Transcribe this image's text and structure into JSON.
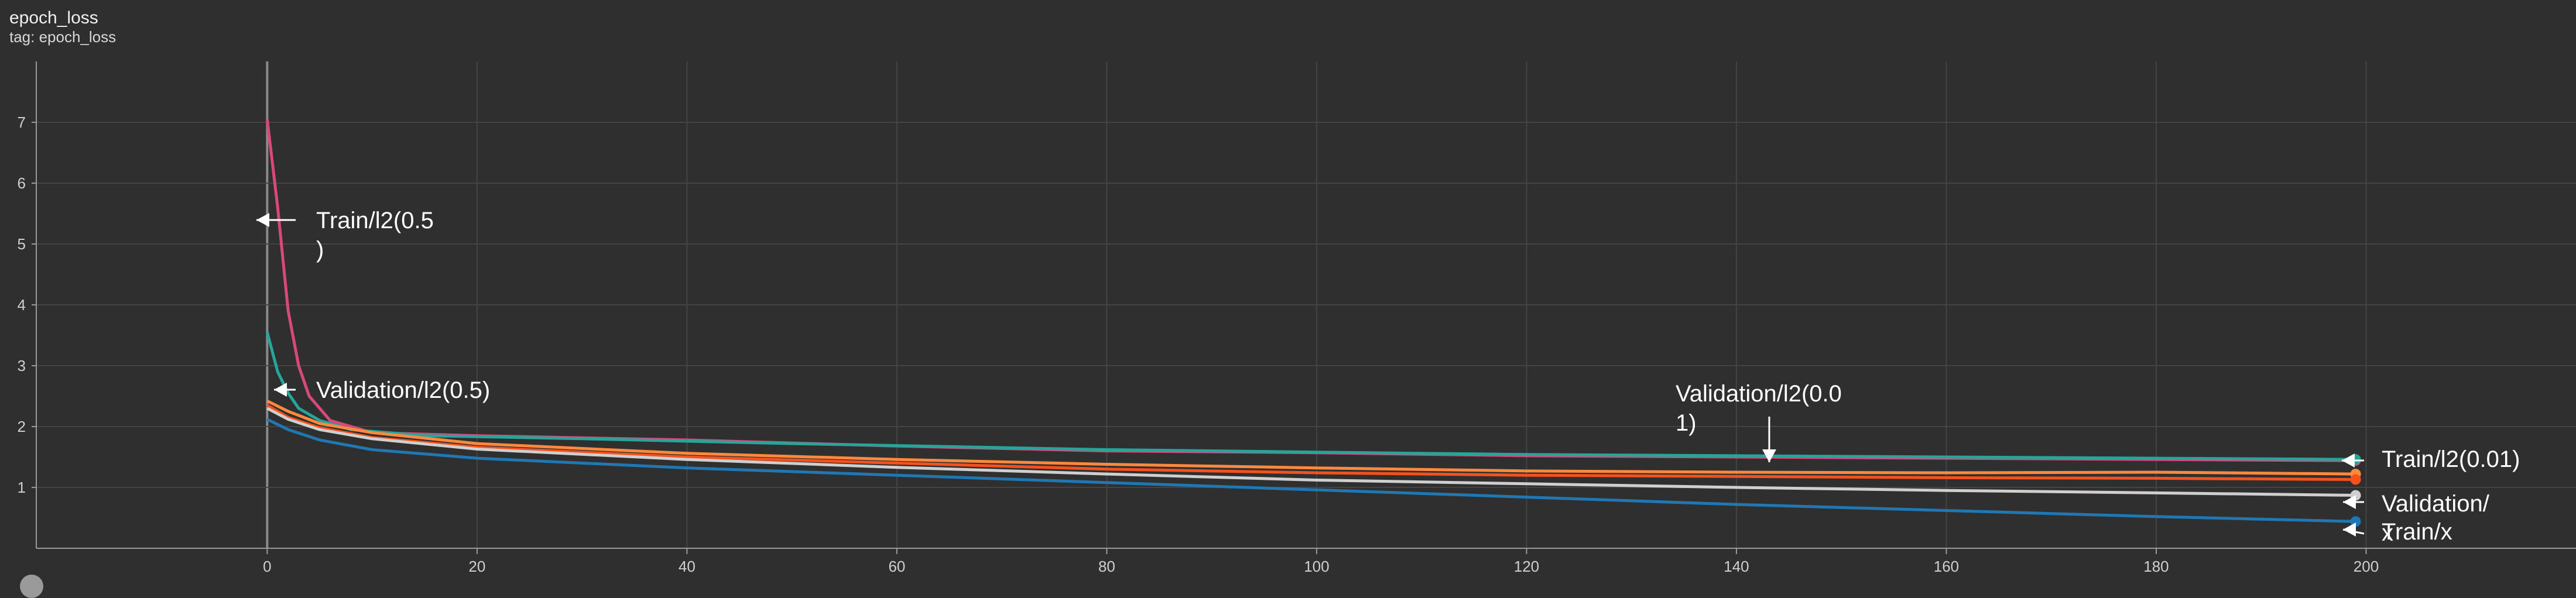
{
  "header": {
    "title": "epoch_loss",
    "tag": "tag: epoch_loss"
  },
  "chart_data": {
    "type": "line",
    "title": "epoch_loss",
    "xlabel": "",
    "ylabel": "",
    "xlim": [
      -22,
      220
    ],
    "ylim": [
      0,
      8
    ],
    "x_ticks": [
      0,
      20,
      40,
      60,
      80,
      100,
      120,
      140,
      160,
      180,
      200
    ],
    "y_ticks": [
      1,
      2,
      3,
      4,
      5,
      6,
      7
    ],
    "grid": true,
    "legend": "none",
    "series": [
      {
        "color": "#d9487a",
        "name": "Train/l2(0.5)",
        "points": [
          [
            0,
            7.05
          ],
          [
            1,
            5.6
          ],
          [
            2,
            3.9
          ],
          [
            3,
            3.0
          ],
          [
            4,
            2.5
          ],
          [
            6,
            2.1
          ],
          [
            10,
            1.9
          ],
          [
            20,
            1.85
          ],
          [
            40,
            1.78
          ],
          [
            60,
            1.68
          ],
          [
            80,
            1.6
          ],
          [
            100,
            1.57
          ],
          [
            120,
            1.52
          ],
          [
            140,
            1.5
          ],
          [
            160,
            1.48
          ],
          [
            180,
            1.46
          ],
          [
            199,
            1.44
          ]
        ]
      },
      {
        "color": "#26a69a",
        "name": "Validation/l2(0.5)",
        "points": [
          [
            0,
            3.55
          ],
          [
            1,
            2.9
          ],
          [
            2,
            2.55
          ],
          [
            3,
            2.3
          ],
          [
            5,
            2.1
          ],
          [
            8,
            1.95
          ],
          [
            15,
            1.85
          ],
          [
            30,
            1.8
          ],
          [
            50,
            1.72
          ],
          [
            80,
            1.62
          ],
          [
            100,
            1.58
          ],
          [
            120,
            1.54
          ],
          [
            140,
            1.52
          ],
          [
            160,
            1.5
          ],
          [
            180,
            1.48
          ],
          [
            199,
            1.46
          ]
        ]
      },
      {
        "color": "#ff8a3d",
        "name": "Validation/l2(0.01)",
        "points": [
          [
            0,
            2.42
          ],
          [
            2,
            2.25
          ],
          [
            5,
            2.05
          ],
          [
            10,
            1.9
          ],
          [
            20,
            1.72
          ],
          [
            40,
            1.56
          ],
          [
            60,
            1.46
          ],
          [
            80,
            1.38
          ],
          [
            100,
            1.32
          ],
          [
            120,
            1.27
          ],
          [
            140,
            1.25
          ],
          [
            160,
            1.24
          ],
          [
            180,
            1.25
          ],
          [
            199,
            1.22
          ]
        ]
      },
      {
        "color": "#f4511e",
        "name": "Train/l2(0.01)",
        "points": [
          [
            0,
            2.35
          ],
          [
            2,
            2.15
          ],
          [
            5,
            1.98
          ],
          [
            10,
            1.82
          ],
          [
            20,
            1.66
          ],
          [
            40,
            1.5
          ],
          [
            60,
            1.4
          ],
          [
            80,
            1.3
          ],
          [
            100,
            1.24
          ],
          [
            120,
            1.2
          ],
          [
            140,
            1.18
          ],
          [
            160,
            1.16
          ],
          [
            180,
            1.15
          ],
          [
            199,
            1.13
          ]
        ]
      },
      {
        "color": "#cfcfcf",
        "name": "Validation/x",
        "points": [
          [
            0,
            2.3
          ],
          [
            2,
            2.12
          ],
          [
            5,
            1.95
          ],
          [
            10,
            1.8
          ],
          [
            20,
            1.63
          ],
          [
            40,
            1.46
          ],
          [
            60,
            1.33
          ],
          [
            80,
            1.22
          ],
          [
            100,
            1.12
          ],
          [
            120,
            1.06
          ],
          [
            140,
            1.0
          ],
          [
            160,
            0.95
          ],
          [
            180,
            0.91
          ],
          [
            199,
            0.87
          ]
        ]
      },
      {
        "color": "#1f77b4",
        "name": "Train/x",
        "points": [
          [
            0,
            2.12
          ],
          [
            2,
            1.95
          ],
          [
            5,
            1.78
          ],
          [
            10,
            1.62
          ],
          [
            20,
            1.48
          ],
          [
            40,
            1.32
          ],
          [
            60,
            1.2
          ],
          [
            80,
            1.08
          ],
          [
            100,
            0.96
          ],
          [
            120,
            0.84
          ],
          [
            140,
            0.72
          ],
          [
            160,
            0.62
          ],
          [
            180,
            0.52
          ],
          [
            199,
            0.44
          ]
        ]
      }
    ],
    "annotations": [
      {
        "lines": [
          "Train/l2(0.5",
          "  )"
        ],
        "x": 1,
        "y": 5.5
      },
      {
        "lines": [
          "Validation/l2(0.5)"
        ],
        "x": 3,
        "y": 2.6
      },
      {
        "lines": [
          "Validation/l2(0.0",
          "1)"
        ],
        "x": 145,
        "y": 1.45
      },
      {
        "lines": [
          "Train/l2(0.01)"
        ],
        "x": 201,
        "y": 1.48
      },
      {
        "lines": [
          "Validation/",
          "x"
        ],
        "x": 201,
        "y": 0.9
      },
      {
        "lines": [
          "Train/x"
        ],
        "x": 201,
        "y": 0.45
      }
    ]
  }
}
